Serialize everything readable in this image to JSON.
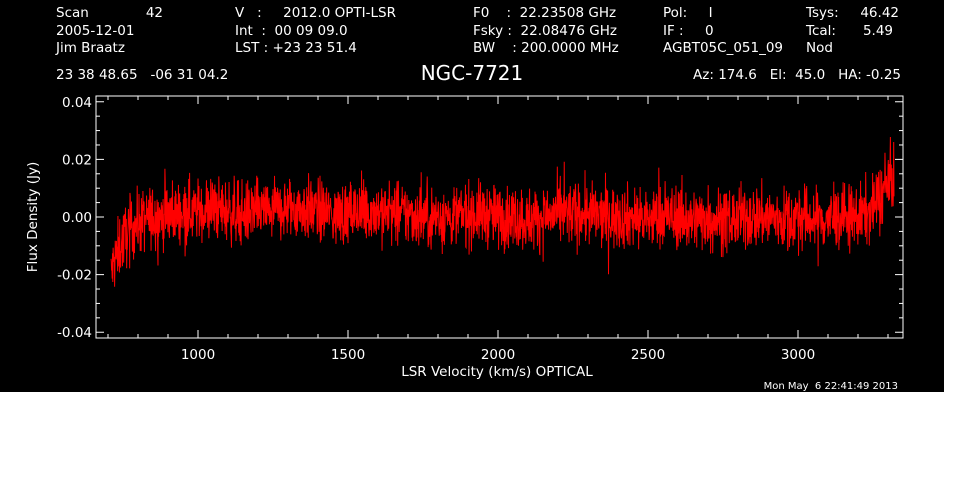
{
  "header": {
    "col1": {
      "line1_label": "Scan",
      "line1_value": "42",
      "line2": "2005-12-01",
      "line3": "Jim Braatz"
    },
    "col2": {
      "line1": "V   :     2012.0 OPTI-LSR",
      "line2": "Int  :  00 09 09.0",
      "line3": "LST : +23 23 51.4"
    },
    "col3": {
      "line1": "F0    :  22.23508 GHz",
      "line2": "Fsky :  22.08476 GHz",
      "line3": "BW    : 200.0000 MHz"
    },
    "col4": {
      "line1": "Pol:     I",
      "line2": "IF :     0",
      "line3": "AGBT05C_051_09"
    },
    "col5": {
      "line1_label": "Tsys:",
      "line1_value": "46.42",
      "line2_label": "Tcal:",
      "line2_value": "5.49",
      "line3": "Nod"
    },
    "coords": "23 38 48.65   -06 31 04.2",
    "azelha": "Az: 174.6   El:  45.0   HA: -0.25"
  },
  "timestamp": "Mon May  6 22:41:49 2013",
  "colors": {
    "background": "#000000",
    "foreground": "#ffffff",
    "trace": "#ff0000"
  },
  "chart_data": {
    "type": "line",
    "title": "NGC-7721",
    "xlabel": "LSR Velocity (km/s) OPTICAL",
    "ylabel": "Flux Density (Jy)",
    "xlim": [
      660,
      3350
    ],
    "ylim": [
      -0.042,
      0.042
    ],
    "xticks": [
      1000,
      1500,
      2000,
      2500,
      3000
    ],
    "xtick_labels": [
      "1000",
      "1500",
      "2000",
      "2500",
      "3000"
    ],
    "yticks": [
      -0.04,
      -0.02,
      0.0,
      0.02,
      0.04
    ],
    "ytick_labels": [
      "-0.04",
      "-0.02",
      "0.00",
      "0.02",
      "0.04"
    ],
    "grid": false,
    "series": [
      {
        "x": [
          710,
          720,
          730,
          740,
          750,
          760,
          775,
          800,
          850,
          900,
          950,
          1000,
          1050,
          1100,
          1150,
          1200,
          1250,
          1300,
          1350,
          1400,
          1450,
          1500,
          1550,
          1600,
          1650,
          1700,
          1750,
          1800,
          1850,
          1900,
          1950,
          2000,
          2050,
          2100,
          2150,
          2200,
          2250,
          2300,
          2350,
          2400,
          2450,
          2500,
          2550,
          2600,
          2650,
          2700,
          2750,
          2800,
          2850,
          2900,
          2950,
          3000,
          3050,
          3100,
          3150,
          3200,
          3240,
          3260,
          3280,
          3300,
          3320
        ],
        "y": [
          -0.02,
          -0.016,
          -0.013,
          -0.01,
          -0.008,
          -0.006,
          -0.004,
          -0.002,
          0.0,
          0.001,
          0.002,
          0.002,
          0.003,
          0.002,
          0.001,
          0.002,
          0.002,
          0.003,
          0.003,
          0.002,
          0.001,
          0.001,
          0.002,
          0.002,
          0.001,
          0.001,
          0.0,
          0.0,
          0.0,
          0.001,
          0.001,
          0.0,
          0.0,
          -0.001,
          0.0,
          0.001,
          0.001,
          0.001,
          0.0,
          0.0,
          0.0,
          -0.001,
          0.0,
          0.0,
          -0.001,
          0.0,
          -0.001,
          -0.001,
          0.0,
          0.0,
          -0.001,
          0.0,
          -0.001,
          -0.001,
          0.0,
          0.0,
          0.002,
          0.005,
          0.008,
          0.011,
          0.014
        ]
      }
    ]
  }
}
